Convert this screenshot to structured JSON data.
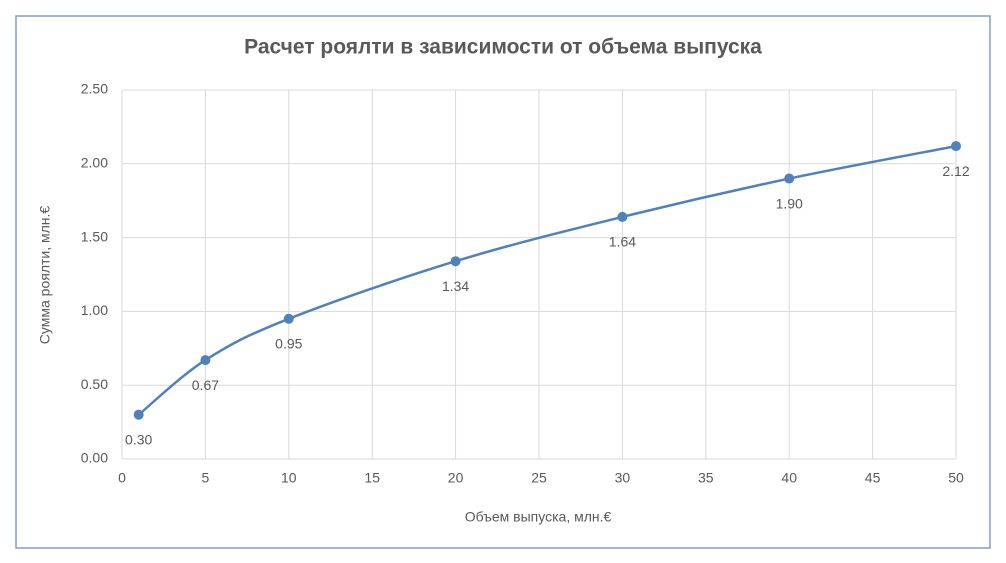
{
  "chart_data": {
    "type": "line",
    "title": "Расчет роялти в зависимости от объема выпуска",
    "x_label": "Объем выпуска, млн.€",
    "y_label": "Сумма роялти, млн.€",
    "x": [
      1,
      5,
      10,
      20,
      30,
      40,
      50
    ],
    "series": [
      {
        "name": "Сумма роялти",
        "color": "#4f81bd",
        "values": [
          0.3,
          0.67,
          0.95,
          1.34,
          1.64,
          1.9,
          2.12
        ],
        "value_labels": [
          "0.30",
          "0.67",
          "0.95",
          "1.34",
          "1.64",
          "1.90",
          "2.12"
        ]
      }
    ],
    "xlim": [
      0,
      50
    ],
    "xticks": [
      0,
      5,
      10,
      15,
      20,
      25,
      30,
      35,
      40,
      45,
      50
    ],
    "ylim": [
      0,
      2.5
    ],
    "yticks": [
      {
        "value": 0,
        "label": "0.00"
      },
      {
        "value": 0.5,
        "label": "0.50"
      },
      {
        "value": 1,
        "label": "1.00"
      },
      {
        "value": 1.5,
        "label": "1.50"
      },
      {
        "value": 2,
        "label": "2.00"
      },
      {
        "value": 2.5,
        "label": "2.50"
      }
    ],
    "grid": true,
    "smooth": true
  }
}
